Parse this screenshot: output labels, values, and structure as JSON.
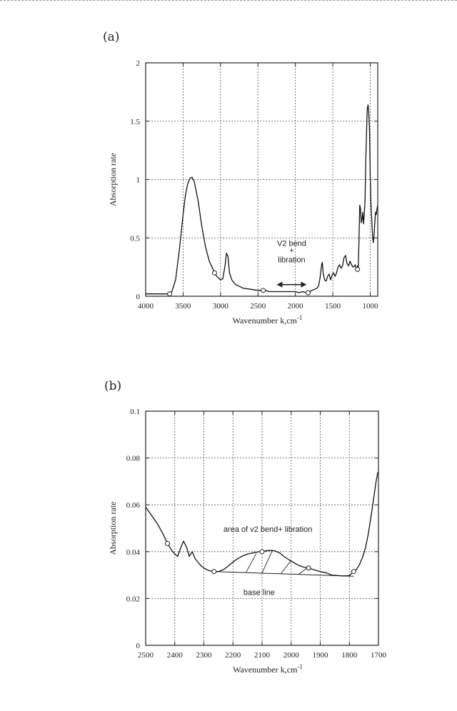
{
  "chart_data": [
    {
      "type": "line",
      "panel_label": "(a)",
      "xlabel": "Wavenumber k,cm",
      "xlabel_sup": "-1",
      "ylabel": "Absorption rate",
      "xlim": [
        4000,
        900
      ],
      "ylim": [
        0,
        2
      ],
      "x_ticks": [
        4000,
        3500,
        3000,
        2500,
        2000,
        1500,
        1000
      ],
      "x_tick_labels": [
        "4000",
        "3500",
        "3000",
        "2500",
        "2000",
        "1500",
        "1000"
      ],
      "y_ticks": [
        0,
        0.5,
        1,
        1.5,
        2
      ],
      "y_tick_labels": [
        "0",
        "0.5",
        "1",
        "1.5",
        "2"
      ],
      "grid": true,
      "annotations": [
        {
          "text": "V2 bend",
          "x": 2050,
          "y": 0.43
        },
        {
          "text": "+",
          "x": 2050,
          "y": 0.37
        },
        {
          "text": "libration",
          "x": 2050,
          "y": 0.29
        }
      ],
      "arrow": {
        "x_from": 2250,
        "x_to": 1850,
        "y": 0.1
      },
      "markers": [
        {
          "x": 3680,
          "y": 0.02
        },
        {
          "x": 3080,
          "y": 0.2
        },
        {
          "x": 2430,
          "y": 0.05
        },
        {
          "x": 1830,
          "y": 0.03
        },
        {
          "x": 1170,
          "y": 0.23
        }
      ],
      "series": [
        {
          "name": "spectrum",
          "x": [
            4000,
            3850,
            3700,
            3650,
            3600,
            3550,
            3500,
            3470,
            3440,
            3410,
            3380,
            3350,
            3300,
            3250,
            3200,
            3150,
            3100,
            3080,
            3050,
            3000,
            2970,
            2940,
            2920,
            2900,
            2880,
            2850,
            2800,
            2700,
            2600,
            2500,
            2430,
            2400,
            2350,
            2300,
            2250,
            2200,
            2150,
            2100,
            2050,
            2000,
            1950,
            1900,
            1850,
            1830,
            1780,
            1740,
            1710,
            1690,
            1670,
            1650,
            1640,
            1630,
            1610,
            1590,
            1570,
            1550,
            1530,
            1510,
            1490,
            1470,
            1450,
            1430,
            1410,
            1390,
            1370,
            1350,
            1330,
            1310,
            1290,
            1270,
            1250,
            1230,
            1210,
            1200,
            1190,
            1180,
            1170,
            1160,
            1150,
            1140,
            1130,
            1120,
            1110,
            1100,
            1090,
            1080,
            1070,
            1060,
            1050,
            1040,
            1030,
            1020,
            1010,
            1000,
            990,
            980,
            970,
            960,
            950,
            940,
            930,
            920,
            910,
            900
          ],
          "y": [
            0.02,
            0.02,
            0.02,
            0.04,
            0.14,
            0.4,
            0.7,
            0.86,
            0.96,
            1.01,
            1.02,
            0.98,
            0.82,
            0.6,
            0.42,
            0.3,
            0.23,
            0.2,
            0.17,
            0.14,
            0.15,
            0.26,
            0.37,
            0.34,
            0.2,
            0.14,
            0.1,
            0.07,
            0.06,
            0.05,
            0.05,
            0.05,
            0.04,
            0.04,
            0.04,
            0.04,
            0.04,
            0.04,
            0.04,
            0.04,
            0.03,
            0.04,
            0.03,
            0.03,
            0.05,
            0.06,
            0.07,
            0.09,
            0.16,
            0.27,
            0.29,
            0.2,
            0.14,
            0.13,
            0.17,
            0.19,
            0.14,
            0.18,
            0.2,
            0.17,
            0.2,
            0.25,
            0.27,
            0.24,
            0.26,
            0.33,
            0.35,
            0.28,
            0.26,
            0.3,
            0.27,
            0.25,
            0.26,
            0.27,
            0.24,
            0.23,
            0.26,
            0.24,
            0.5,
            0.78,
            0.75,
            0.63,
            0.66,
            0.72,
            0.62,
            0.7,
            0.82,
            1.15,
            1.4,
            1.6,
            1.64,
            1.58,
            1.42,
            1.02,
            0.78,
            0.66,
            0.52,
            0.46,
            0.52,
            0.62,
            0.72,
            0.7,
            0.75,
            0.78
          ]
        }
      ]
    },
    {
      "type": "line",
      "panel_label": "(b)",
      "xlabel": "Wavenumber k,cm",
      "xlabel_sup": "-1",
      "ylabel": "Absorption rate",
      "xlim": [
        2500,
        1700
      ],
      "ylim": [
        0,
        0.1
      ],
      "x_ticks": [
        2500,
        2400,
        2300,
        2200,
        2100,
        2000,
        1900,
        1800,
        1700
      ],
      "x_tick_labels": [
        "2500",
        "2400",
        "2300",
        "2200",
        "2100",
        "2000",
        "1900",
        "1800",
        "1700"
      ],
      "y_ticks": [
        0,
        0.02,
        0.04,
        0.06,
        0.08,
        0.1
      ],
      "y_tick_labels": [
        "0",
        "0.02",
        "0.04",
        "0.06",
        "0.08",
        "0.1"
      ],
      "grid": true,
      "annotations": [
        {
          "text": "area of v2 bend+ libration",
          "x": 2080,
          "y": 0.0485
        },
        {
          "text": "base line",
          "x": 2110,
          "y": 0.0215
        }
      ],
      "baseline": {
        "x": [
          2265,
          1785
        ],
        "y": [
          0.0315,
          0.0295
        ]
      },
      "hatch_lines": [
        {
          "x": [
            2155,
            2120
          ],
          "y": [
            0.0312,
            0.0392
          ]
        },
        {
          "x": [
            2100,
            2065
          ],
          "y": [
            0.0309,
            0.0404
          ]
        },
        {
          "x": [
            2035,
            2000
          ],
          "y": [
            0.0306,
            0.0363
          ]
        },
        {
          "x": [
            1975,
            1945
          ],
          "y": [
            0.0303,
            0.033
          ]
        }
      ],
      "markers": [
        {
          "x": 2425,
          "y": 0.0435
        },
        {
          "x": 2265,
          "y": 0.0315
        },
        {
          "x": 2100,
          "y": 0.04
        },
        {
          "x": 1940,
          "y": 0.033
        },
        {
          "x": 1785,
          "y": 0.0315
        }
      ],
      "series": [
        {
          "name": "spectrum",
          "x": [
            2500,
            2480,
            2460,
            2440,
            2425,
            2410,
            2400,
            2390,
            2380,
            2370,
            2360,
            2350,
            2340,
            2330,
            2320,
            2310,
            2300,
            2285,
            2265,
            2250,
            2230,
            2210,
            2190,
            2170,
            2150,
            2130,
            2110,
            2100,
            2080,
            2060,
            2040,
            2020,
            2000,
            1980,
            1960,
            1940,
            1920,
            1900,
            1880,
            1860,
            1840,
            1820,
            1800,
            1790,
            1785,
            1775,
            1765,
            1755,
            1745,
            1735,
            1725,
            1715,
            1708,
            1702
          ],
          "y": [
            0.059,
            0.0555,
            0.052,
            0.0475,
            0.0435,
            0.0405,
            0.039,
            0.038,
            0.0415,
            0.0445,
            0.042,
            0.038,
            0.04,
            0.037,
            0.0355,
            0.034,
            0.033,
            0.032,
            0.0315,
            0.0315,
            0.0325,
            0.0345,
            0.0365,
            0.038,
            0.039,
            0.0395,
            0.04,
            0.04,
            0.0405,
            0.0405,
            0.0395,
            0.0375,
            0.036,
            0.0345,
            0.0335,
            0.033,
            0.0322,
            0.0315,
            0.031,
            0.03,
            0.0298,
            0.0296,
            0.0298,
            0.031,
            0.0315,
            0.0325,
            0.0345,
            0.0375,
            0.0415,
            0.0475,
            0.0555,
            0.064,
            0.07,
            0.074
          ]
        }
      ]
    }
  ]
}
